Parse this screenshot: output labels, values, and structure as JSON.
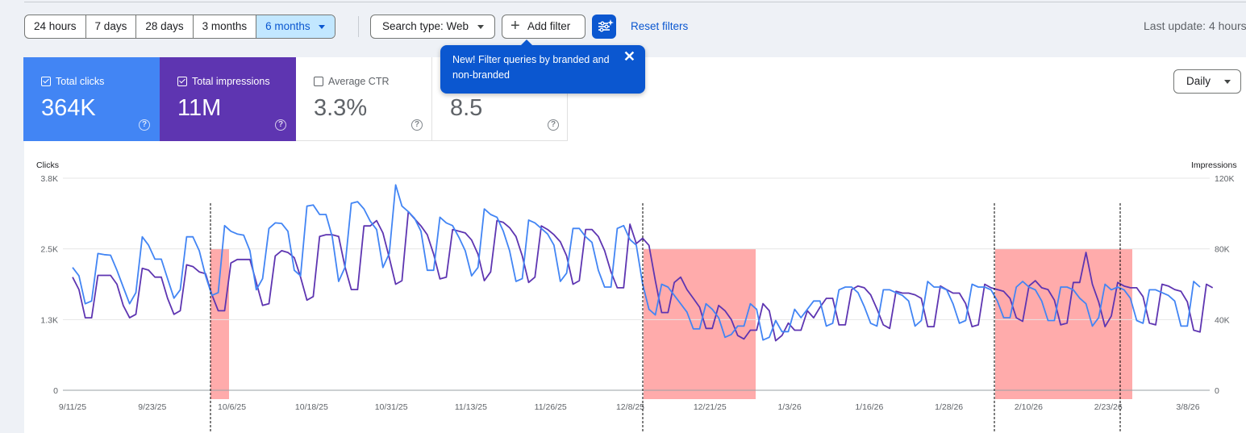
{
  "filters": {
    "date_ranges": [
      {
        "label": "24 hours",
        "selected": false
      },
      {
        "label": "7 days",
        "selected": false
      },
      {
        "label": "28 days",
        "selected": false
      },
      {
        "label": "3 months",
        "selected": false
      },
      {
        "label": "6 months",
        "selected": true
      }
    ],
    "search_type": "Search type: Web",
    "add_filter": "Add filter",
    "reset_filters": "Reset filters",
    "last_update": "Last update: 4 hours"
  },
  "tooltip": {
    "text": "New! Filter queries by branded and non-branded",
    "close": "✕"
  },
  "metrics": [
    {
      "label": "Total clicks",
      "value": "364K",
      "checked": true,
      "color": "#4285f4"
    },
    {
      "label": "Total impressions",
      "value": "11M",
      "checked": true,
      "color": "#5e35b1"
    },
    {
      "label": "Average CTR",
      "value": "3.3%",
      "checked": false
    },
    {
      "label": "",
      "value": "8.5",
      "checked": false
    }
  ],
  "granularity": "Daily",
  "chart_data": {
    "type": "line",
    "y_left_label": "Clicks",
    "y_right_label": "Impressions",
    "y_left_ticks": [
      "3.8K",
      "2.5K",
      "1.3K",
      "0"
    ],
    "y_right_ticks": [
      "120K",
      "80K",
      "40K",
      "0"
    ],
    "x_tick_labels": [
      "9/11/25",
      "9/23/25",
      "10/6/25",
      "10/18/25",
      "10/31/25",
      "11/13/25",
      "11/26/25",
      "12/8/25",
      "12/21/25",
      "1/3/26",
      "1/16/26",
      "1/28/26",
      "2/10/26",
      "2/23/26",
      "3/8/26"
    ],
    "ylim_left": [
      0,
      3800
    ],
    "ylim_right": [
      0,
      120000
    ],
    "series": [
      {
        "name": "Clicks",
        "color": "#4285f4",
        "axis": "left",
        "values": [
          2200,
          2050,
          1550,
          1600,
          2450,
          2430,
          2420,
          2150,
          1850,
          1550,
          1750,
          2750,
          2600,
          2350,
          2350,
          2000,
          1650,
          1800,
          2750,
          2750,
          2500,
          2050,
          1700,
          1750,
          2950,
          2850,
          2800,
          2780,
          2500,
          1800,
          2000,
          2900,
          3000,
          2990,
          2850,
          2150,
          2050,
          3300,
          3320,
          3150,
          3150,
          2750,
          1950,
          2200,
          3350,
          3380,
          3250,
          3030,
          2880,
          2200,
          2450,
          3680,
          3300,
          3200,
          3080,
          2850,
          2150,
          2150,
          3100,
          3000,
          2950,
          2740,
          2500,
          2050,
          2200,
          3250,
          3150,
          3100,
          2850,
          2500,
          1950,
          2000,
          3050,
          3000,
          2900,
          2800,
          2600,
          1950,
          2100,
          2900,
          2900,
          2750,
          2650,
          2150,
          1850,
          1850,
          2900,
          2950,
          2700,
          2600,
          1900,
          1450,
          1350,
          1900,
          1850,
          1700,
          1550,
          1400,
          1100,
          1100,
          1550,
          1450,
          1300,
          950,
          1000,
          1150,
          1150,
          1550,
          1450,
          900,
          950,
          1250,
          1050,
          1050,
          1450,
          1300,
          1450,
          1600,
          1600,
          1150,
          1200,
          1800,
          1850,
          1850,
          1750,
          1500,
          1200,
          1150,
          1800,
          1800,
          1750,
          1700,
          1600,
          1150,
          1250,
          1950,
          1850,
          1850,
          1800,
          1550,
          1200,
          1250,
          1900,
          1850,
          1850,
          1800,
          1600,
          1300,
          1300,
          1850,
          1950,
          1850,
          1800,
          1600,
          1250,
          1250,
          1850,
          1850,
          1800,
          1650,
          1550,
          1150,
          1300,
          1900,
          1800,
          1850,
          1800,
          1650,
          1250,
          1200,
          1800,
          1800,
          1750,
          1700,
          1600,
          1150,
          1150,
          1950,
          1850
        ]
      },
      {
        "name": "Impressions",
        "color": "#5e35b1",
        "axis": "right",
        "values": [
          64000,
          57000,
          41000,
          41000,
          65000,
          65000,
          65000,
          60000,
          48000,
          41000,
          43000,
          69000,
          68000,
          64000,
          64000,
          52000,
          43000,
          45000,
          71000,
          70000,
          67000,
          66000,
          54000,
          45000,
          45000,
          72000,
          74000,
          74000,
          74000,
          61000,
          48000,
          49000,
          76000,
          79000,
          78000,
          75000,
          64000,
          51000,
          53000,
          87000,
          88000,
          88000,
          87000,
          70000,
          57000,
          57000,
          93000,
          93000,
          96000,
          89000,
          75000,
          60000,
          62000,
          101000,
          97000,
          93000,
          88000,
          77000,
          63000,
          64000,
          91000,
          90000,
          89000,
          85000,
          77000,
          62000,
          67000,
          96000,
          95000,
          92000,
          87000,
          76000,
          61000,
          64000,
          93000,
          91000,
          88000,
          84000,
          76000,
          60000,
          62000,
          91000,
          91000,
          87000,
          79000,
          67000,
          58000,
          58000,
          94000,
          83000,
          86000,
          82000,
          62000,
          44000,
          44000,
          61000,
          64000,
          57000,
          52000,
          47000,
          35000,
          35000,
          48000,
          45000,
          40000,
          31000,
          29000,
          34000,
          34000,
          49000,
          45000,
          28000,
          31000,
          38000,
          34000,
          34000,
          45000,
          41000,
          47000,
          52000,
          52000,
          37000,
          37000,
          57000,
          59000,
          58000,
          54000,
          46000,
          37000,
          35000,
          56000,
          55000,
          55000,
          54000,
          52000,
          36000,
          36000,
          59000,
          57000,
          55000,
          55000,
          49000,
          36000,
          37000,
          60000,
          58000,
          57000,
          56000,
          52000,
          41000,
          39000,
          59000,
          62000,
          58000,
          57000,
          51000,
          37000,
          38000,
          61000,
          61000,
          78000,
          60000,
          50000,
          36000,
          42000,
          61000,
          59000,
          58000,
          58000,
          53000,
          38000,
          37000,
          60000,
          59000,
          57000,
          56000,
          50000,
          34000,
          33000,
          60000,
          58000
        ]
      }
    ],
    "grid": true,
    "legend": "none"
  }
}
